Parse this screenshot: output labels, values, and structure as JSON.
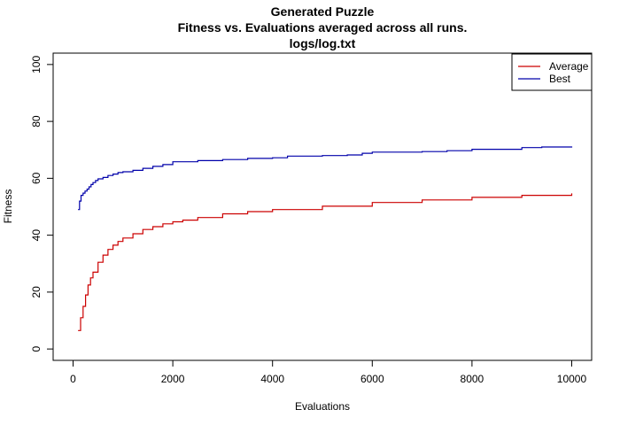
{
  "chart_data": {
    "type": "line",
    "title": [
      "Generated Puzzle",
      "Fitness vs. Evaluations averaged across all runs.",
      "logs/log.txt"
    ],
    "xlabel": "Evaluations",
    "ylabel": "Fitness",
    "xlim": [
      -400,
      10400
    ],
    "ylim": [
      -4,
      104
    ],
    "xticks": [
      0,
      2000,
      4000,
      6000,
      8000,
      10000
    ],
    "xtick_labels": [
      "0",
      "2000",
      "4000",
      "6000",
      "8000",
      "10000"
    ],
    "yticks": [
      0,
      20,
      40,
      60,
      80,
      100
    ],
    "ytick_labels": [
      "0",
      "20",
      "40",
      "60",
      "80",
      "100"
    ],
    "grid": false,
    "legend_position": "top-right",
    "series": [
      {
        "name": "Average",
        "color": "#cc0000",
        "step": true,
        "x": [
          100,
          150,
          200,
          250,
          300,
          350,
          400,
          500,
          600,
          700,
          800,
          900,
          1000,
          1200,
          1400,
          1600,
          1800,
          2000,
          2200,
          2500,
          3000,
          3500,
          4000,
          5000,
          6000,
          7000,
          8000,
          9000,
          10000
        ],
        "y": [
          6.5,
          11,
          15,
          19,
          22.5,
          25,
          27,
          30.5,
          33,
          35,
          36.5,
          37.8,
          39,
          40.5,
          42,
          43,
          44,
          44.7,
          45.3,
          46.2,
          47.5,
          48.3,
          49,
          50.2,
          51.5,
          52.4,
          53.3,
          54,
          54.7
        ]
      },
      {
        "name": "Best",
        "color": "#0000aa",
        "step": true,
        "x": [
          100,
          130,
          160,
          200,
          240,
          280,
          320,
          360,
          400,
          450,
          500,
          600,
          700,
          800,
          900,
          1000,
          1200,
          1400,
          1600,
          1800,
          2000,
          2500,
          3000,
          3500,
          4000,
          4300,
          5000,
          5500,
          5800,
          6000,
          7000,
          7500,
          8000,
          9000,
          9400,
          10000
        ],
        "y": [
          49,
          52,
          54,
          54.8,
          55.5,
          56.2,
          57,
          57.8,
          58.5,
          59.2,
          59.8,
          60.3,
          61,
          61.5,
          62,
          62.3,
          62.8,
          63.5,
          64.2,
          64.8,
          65.8,
          66.2,
          66.6,
          67,
          67.2,
          67.8,
          68,
          68.2,
          68.8,
          69.2,
          69.4,
          69.7,
          70.2,
          70.8,
          71,
          71.2
        ]
      }
    ]
  }
}
